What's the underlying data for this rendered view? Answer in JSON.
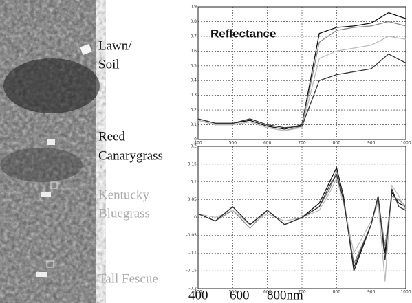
{
  "image_labels": [
    "Lawn/",
    "Soil",
    "Reed",
    "Canarygrass",
    "Kentucky",
    "Bluegrass",
    "Tall Fescue"
  ],
  "wavelength_labels": [
    "400",
    "600",
    "800nm"
  ],
  "chart_data": [
    {
      "type": "line",
      "title": "Reflectance",
      "x": [
        400,
        450,
        500,
        550,
        600,
        650,
        700,
        750,
        800,
        850,
        900,
        950,
        1000
      ],
      "series": [
        {
          "color": "#111111",
          "values": [
            0.14,
            0.11,
            0.11,
            0.13,
            0.09,
            0.07,
            0.1,
            0.72,
            0.76,
            0.77,
            0.79,
            0.86,
            0.82
          ]
        },
        {
          "color": "#888888",
          "values": [
            0.13,
            0.1,
            0.1,
            0.12,
            0.08,
            0.06,
            0.09,
            0.66,
            0.74,
            0.76,
            0.77,
            0.8,
            0.77
          ]
        },
        {
          "color": "#bbbbbb",
          "values": [
            0.13,
            0.1,
            0.1,
            0.12,
            0.08,
            0.06,
            0.08,
            0.55,
            0.6,
            0.62,
            0.64,
            0.7,
            0.68
          ]
        },
        {
          "color": "#333333",
          "values": [
            0.14,
            0.11,
            0.11,
            0.14,
            0.1,
            0.08,
            0.09,
            0.4,
            0.44,
            0.46,
            0.48,
            0.58,
            0.52
          ]
        }
      ],
      "xlim": [
        400,
        1000
      ],
      "xticks": [
        400,
        500,
        600,
        700,
        800,
        900,
        1000
      ],
      "ylim": [
        0,
        0.9
      ],
      "yticks": [
        0,
        0.1,
        0.2,
        0.3,
        0.4,
        0.5,
        0.6,
        0.7,
        0.8,
        0.9
      ],
      "grid": true
    },
    {
      "type": "line",
      "x": [
        400,
        450,
        500,
        550,
        600,
        650,
        700,
        750,
        780,
        800,
        820,
        850,
        900,
        920,
        940,
        960,
        980,
        1000
      ],
      "series": [
        {
          "color": "#111111",
          "values": [
            0.01,
            -0.01,
            0.03,
            -0.02,
            0.02,
            -0.02,
            0.0,
            0.04,
            0.1,
            0.14,
            0.06,
            -0.15,
            -0.02,
            0.06,
            -0.1,
            0.07,
            0.04,
            0.03
          ]
        },
        {
          "color": "#888888",
          "values": [
            0.01,
            -0.01,
            0.02,
            -0.03,
            0.02,
            -0.02,
            0.0,
            0.03,
            0.08,
            0.13,
            0.05,
            -0.13,
            -0.02,
            0.05,
            -0.08,
            0.06,
            0.05,
            0.03
          ]
        },
        {
          "color": "#bbbbbb",
          "values": [
            0.01,
            0.0,
            0.02,
            -0.02,
            0.01,
            -0.01,
            0.0,
            0.02,
            0.07,
            0.11,
            0.04,
            -0.1,
            -0.01,
            0.04,
            -0.18,
            0.09,
            0.06,
            0.02
          ]
        },
        {
          "color": "#333333",
          "values": [
            0.01,
            -0.01,
            0.03,
            -0.02,
            0.02,
            -0.02,
            0.0,
            0.03,
            0.09,
            0.12,
            0.05,
            -0.14,
            -0.02,
            0.06,
            -0.12,
            0.08,
            0.03,
            0.02
          ]
        }
      ],
      "xlim": [
        400,
        1000
      ],
      "xticks": [
        400,
        500,
        600,
        700,
        800,
        900,
        1000
      ],
      "ylim": [
        -0.2,
        0.2
      ],
      "yticks": [
        -0.2,
        -0.15,
        -0.1,
        -0.05,
        0,
        0.05,
        0.1,
        0.15,
        0.2
      ],
      "grid": true
    }
  ]
}
